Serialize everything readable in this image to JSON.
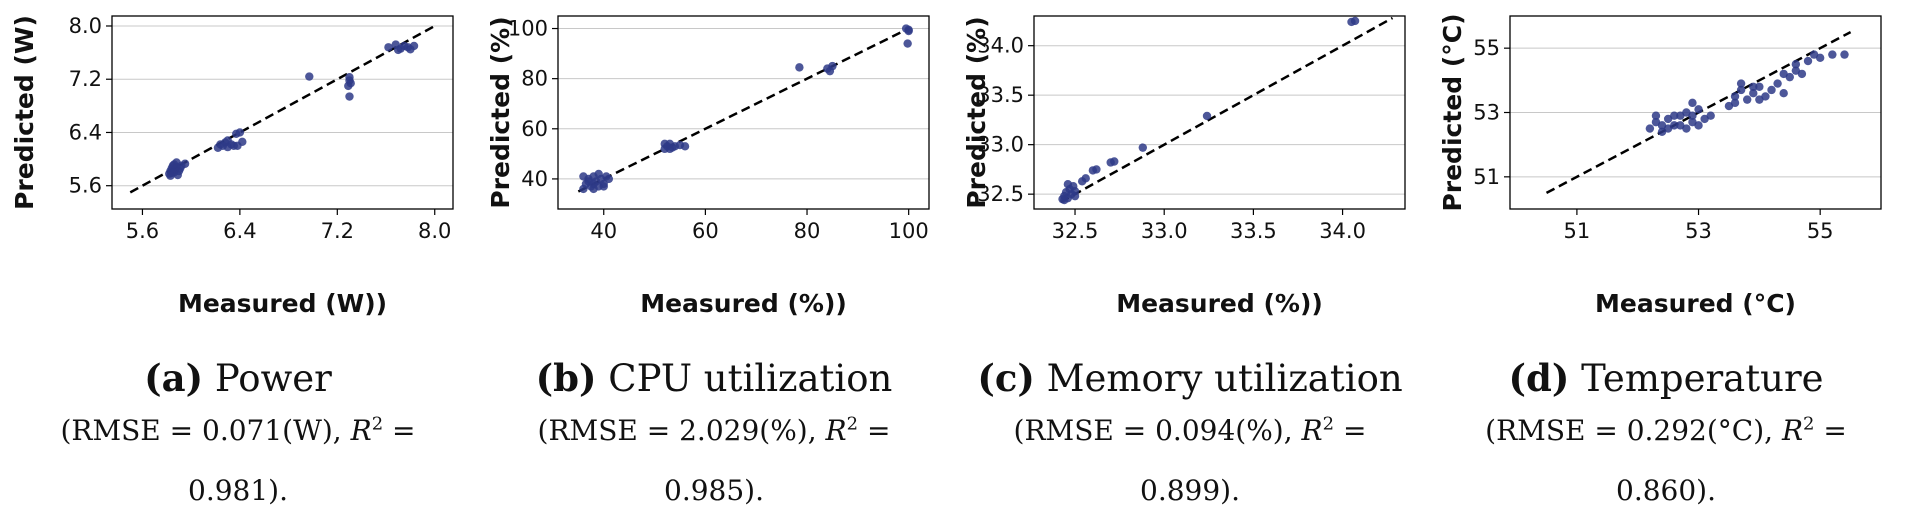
{
  "colors": {
    "point": "#2e3a87",
    "fit_line": "#000000",
    "grid": "#c8c8c8"
  },
  "panels": [
    {
      "label": "(a)",
      "name": "Power",
      "rmse_text": "(RMSE = 0.071(W), ",
      "r2_symbol": "R",
      "r2_sup": "2",
      "r2_eq": " =",
      "r2_value": "0.981)."
    },
    {
      "label": "(b)",
      "name": "CPU utilization",
      "rmse_text": "(RMSE = 2.029(%), ",
      "r2_symbol": "R",
      "r2_sup": "2",
      "r2_eq": " =",
      "r2_value": "0.985)."
    },
    {
      "label": "(c)",
      "name": "Memory utilization",
      "rmse_text": "(RMSE = 0.094(%), ",
      "r2_symbol": "R",
      "r2_sup": "2",
      "r2_eq": " =",
      "r2_value": "0.899)."
    },
    {
      "label": "(d)",
      "name": "Temperature",
      "rmse_text": "(RMSE = 0.292(°C), ",
      "r2_symbol": "R",
      "r2_sup": "2",
      "r2_eq": " =",
      "r2_value": "0.860)."
    }
  ],
  "chart_data": [
    {
      "type": "scatter",
      "title": "Power",
      "xlabel": "Measured (W))",
      "ylabel": "Predicted (W)",
      "xlim": [
        5.35,
        8.15
      ],
      "ylim": [
        5.25,
        8.15
      ],
      "xticks": [
        5.6,
        6.4,
        7.2,
        8.0
      ],
      "xtick_labels": [
        "5.6",
        "6.4",
        "7.2",
        "8.0"
      ],
      "yticks": [
        5.6,
        6.4,
        7.2,
        8.0
      ],
      "ytick_labels": [
        "5.6",
        "6.4",
        "7.2",
        "8.0"
      ],
      "grid": "y",
      "diagonal": [
        [
          5.5,
          5.5
        ],
        [
          8.0,
          8.0
        ]
      ],
      "points": [
        [
          5.82,
          5.78
        ],
        [
          5.83,
          5.82
        ],
        [
          5.84,
          5.86
        ],
        [
          5.85,
          5.9
        ],
        [
          5.86,
          5.8
        ],
        [
          5.87,
          5.84
        ],
        [
          5.88,
          5.88
        ],
        [
          5.89,
          5.76
        ],
        [
          5.9,
          5.82
        ],
        [
          5.86,
          5.92
        ],
        [
          5.88,
          5.95
        ],
        [
          5.91,
          5.86
        ],
        [
          5.84,
          5.79
        ],
        [
          5.92,
          5.9
        ],
        [
          5.83,
          5.75
        ],
        [
          5.95,
          5.93
        ],
        [
          6.22,
          6.17
        ],
        [
          6.24,
          6.22
        ],
        [
          6.26,
          6.2
        ],
        [
          6.28,
          6.25
        ],
        [
          6.3,
          6.18
        ],
        [
          6.33,
          6.22
        ],
        [
          6.35,
          6.2
        ],
        [
          6.37,
          6.38
        ],
        [
          6.4,
          6.4
        ],
        [
          6.42,
          6.26
        ],
        [
          6.38,
          6.2
        ],
        [
          6.3,
          6.28
        ],
        [
          6.97,
          7.24
        ],
        [
          7.3,
          7.23
        ],
        [
          7.3,
          7.18
        ],
        [
          7.31,
          7.14
        ],
        [
          7.29,
          7.1
        ],
        [
          7.3,
          6.94
        ],
        [
          7.62,
          7.68
        ],
        [
          7.68,
          7.72
        ],
        [
          7.72,
          7.66
        ],
        [
          7.75,
          7.7
        ],
        [
          7.78,
          7.68
        ],
        [
          7.8,
          7.65
        ],
        [
          7.83,
          7.7
        ],
        [
          7.7,
          7.64
        ]
      ]
    },
    {
      "type": "scatter",
      "title": "CPU utilization",
      "xlabel": "Measured (%))",
      "ylabel": "Predicted (%)",
      "xlim": [
        31,
        104
      ],
      "ylim": [
        28,
        105
      ],
      "xticks": [
        40,
        60,
        80,
        100
      ],
      "xtick_labels": [
        "40",
        "60",
        "80",
        "100"
      ],
      "yticks": [
        40,
        60,
        80,
        100
      ],
      "ytick_labels": [
        "40",
        "60",
        "80",
        "100"
      ],
      "grid": "y",
      "diagonal": [
        [
          35,
          35
        ],
        [
          100,
          100
        ]
      ],
      "points": [
        [
          36,
          36
        ],
        [
          36.5,
          38
        ],
        [
          37,
          40
        ],
        [
          37.5,
          37
        ],
        [
          38,
          41
        ],
        [
          38.5,
          39
        ],
        [
          39,
          37
        ],
        [
          39.5,
          40
        ],
        [
          40,
          38
        ],
        [
          40.5,
          41
        ],
        [
          37,
          39
        ],
        [
          38,
          36
        ],
        [
          39,
          42
        ],
        [
          36,
          41
        ],
        [
          41,
          40
        ],
        [
          38,
          38
        ],
        [
          40,
          37
        ],
        [
          52,
          52
        ],
        [
          52.5,
          53
        ],
        [
          53,
          54
        ],
        [
          53.5,
          52.5
        ],
        [
          54,
          53
        ],
        [
          55,
          53.5
        ],
        [
          56,
          53
        ],
        [
          52,
          54
        ],
        [
          53,
          52
        ],
        [
          78.5,
          84.5
        ],
        [
          84,
          84
        ],
        [
          85,
          85
        ],
        [
          84.5,
          83
        ],
        [
          99.5,
          100
        ],
        [
          100,
          99.5
        ],
        [
          100,
          99
        ],
        [
          99.8,
          94
        ]
      ]
    },
    {
      "type": "scatter",
      "title": "Memory utilization",
      "xlabel": "Measured (%))",
      "ylabel": "Predicted (%)",
      "xlim": [
        32.27,
        34.35
      ],
      "ylim": [
        32.35,
        34.3
      ],
      "xticks": [
        32.5,
        33.0,
        33.5,
        34.0
      ],
      "xtick_labels": [
        "32.5",
        "33.0",
        "33.5",
        "34.0"
      ],
      "yticks": [
        32.5,
        33.0,
        33.5,
        34.0
      ],
      "ytick_labels": [
        "32.5",
        "33.0",
        "33.5",
        "34.0"
      ],
      "grid": "y",
      "diagonal": [
        [
          32.42,
          32.42
        ],
        [
          34.28,
          34.28
        ]
      ],
      "points": [
        [
          32.43,
          32.45
        ],
        [
          32.44,
          32.48
        ],
        [
          32.45,
          32.52
        ],
        [
          32.46,
          32.46
        ],
        [
          32.47,
          32.55
        ],
        [
          32.48,
          32.5
        ],
        [
          32.49,
          32.58
        ],
        [
          32.5,
          32.53
        ],
        [
          32.46,
          32.6
        ],
        [
          32.44,
          32.44
        ],
        [
          32.5,
          32.48
        ],
        [
          32.54,
          32.63
        ],
        [
          32.56,
          32.66
        ],
        [
          32.6,
          32.74
        ],
        [
          32.62,
          32.75
        ],
        [
          32.7,
          32.82
        ],
        [
          32.72,
          32.83
        ],
        [
          32.88,
          32.97
        ],
        [
          33.24,
          33.29
        ],
        [
          34.05,
          34.24
        ],
        [
          34.07,
          34.25
        ]
      ]
    },
    {
      "type": "scatter",
      "title": "Temperature",
      "xlabel": "Measured (°C)",
      "ylabel": "Predicted (°C)",
      "xlim": [
        49.9,
        56.0
      ],
      "ylim": [
        50.0,
        56.0
      ],
      "xticks": [
        51,
        53,
        55
      ],
      "xtick_labels": [
        "51",
        "53",
        "55"
      ],
      "yticks": [
        51,
        53,
        55
      ],
      "ytick_labels": [
        "51",
        "53",
        "55"
      ],
      "grid": "y",
      "diagonal": [
        [
          50.5,
          50.5
        ],
        [
          55.5,
          55.5
        ]
      ],
      "points": [
        [
          52.2,
          52.5
        ],
        [
          52.3,
          52.7
        ],
        [
          52.4,
          52.4
        ],
        [
          52.5,
          52.8
        ],
        [
          52.6,
          52.6
        ],
        [
          52.7,
          52.9
        ],
        [
          52.8,
          52.5
        ],
        [
          52.9,
          52.7
        ],
        [
          53.0,
          52.6
        ],
        [
          52.3,
          52.9
        ],
        [
          52.5,
          52.5
        ],
        [
          52.7,
          52.6
        ],
        [
          52.9,
          52.9
        ],
        [
          53.1,
          52.8
        ],
        [
          52.4,
          52.6
        ],
        [
          52.6,
          52.9
        ],
        [
          52.8,
          53.0
        ],
        [
          53.0,
          53.1
        ],
        [
          52.9,
          53.3
        ],
        [
          53.2,
          52.9
        ],
        [
          53.5,
          53.2
        ],
        [
          53.6,
          53.5
        ],
        [
          53.7,
          53.7
        ],
        [
          53.8,
          53.4
        ],
        [
          53.9,
          53.6
        ],
        [
          54.0,
          53.8
        ],
        [
          54.1,
          53.5
        ],
        [
          54.2,
          53.7
        ],
        [
          54.3,
          53.9
        ],
        [
          53.7,
          53.9
        ],
        [
          53.9,
          53.8
        ],
        [
          54.0,
          53.4
        ],
        [
          54.4,
          53.6
        ],
        [
          53.6,
          53.3
        ],
        [
          54.5,
          54.1
        ],
        [
          54.6,
          54.3
        ],
        [
          54.7,
          54.2
        ],
        [
          54.8,
          54.6
        ],
        [
          54.9,
          54.8
        ],
        [
          55.0,
          54.7
        ],
        [
          55.2,
          54.8
        ],
        [
          55.4,
          54.8
        ],
        [
          54.6,
          54.5
        ],
        [
          54.4,
          54.2
        ]
      ]
    }
  ]
}
